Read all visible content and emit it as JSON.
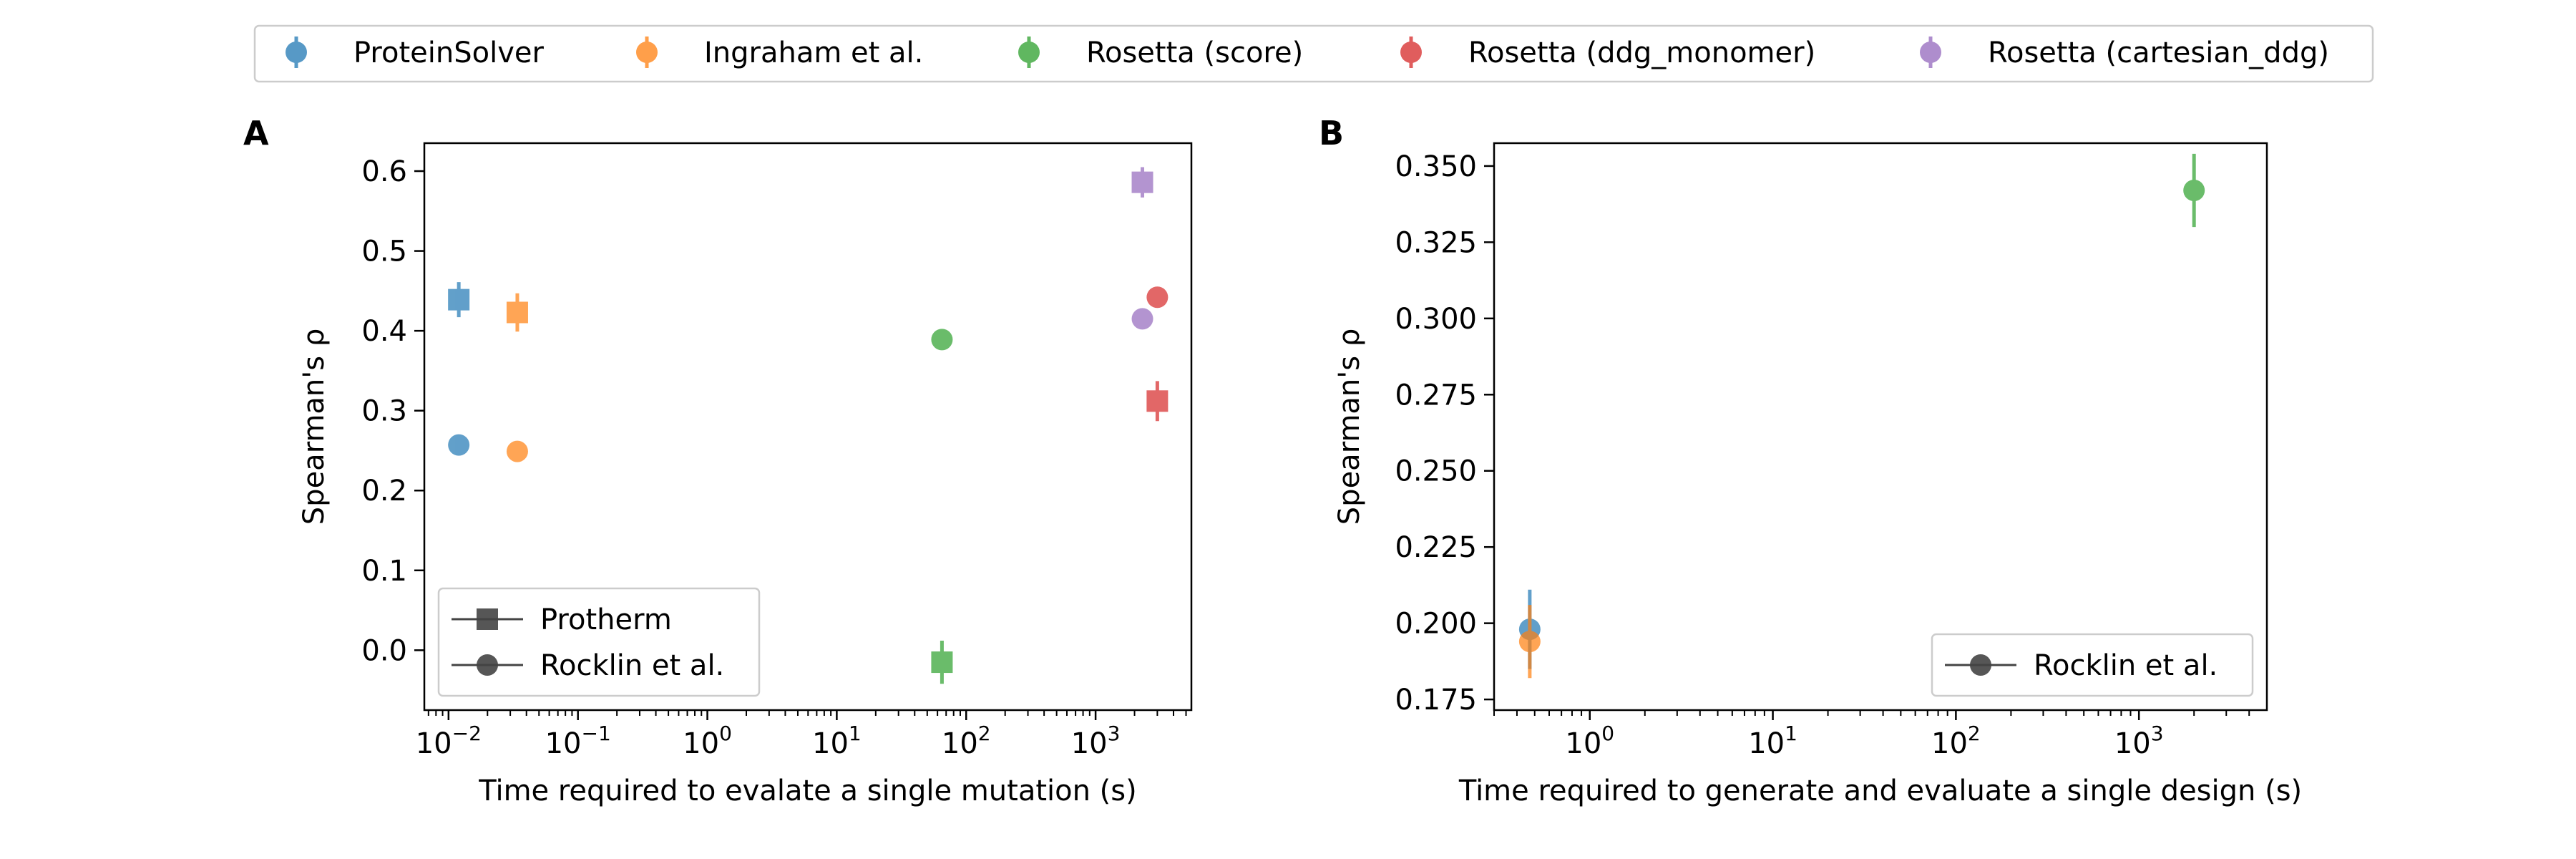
{
  "figure": {
    "legend": [
      {
        "name": "ProteinSolver",
        "color": "#1f77b4"
      },
      {
        "name": "Ingraham et al.",
        "color": "#ff7f0e"
      },
      {
        "name": "Rosetta (score)",
        "color": "#2ca02c"
      },
      {
        "name": "Rosetta (ddg_monomer)",
        "color": "#d62728"
      },
      {
        "name": "Rosetta (cartesian_ddg)",
        "color": "#9467bd"
      }
    ]
  },
  "chart_data": [
    {
      "panel": "A",
      "type": "scatter",
      "xlabel": "Time required to evalate a single mutation (s)",
      "ylabel": "Spearman's ρ",
      "xscale": "log",
      "xlim": [
        0.0065,
        5500
      ],
      "ylim": [
        -0.075,
        0.635
      ],
      "xticks": [
        0.01,
        0.1,
        1,
        10,
        100,
        1000
      ],
      "xtick_labels": [
        [
          "10",
          "−2"
        ],
        [
          "10",
          "−1"
        ],
        [
          "10",
          "0"
        ],
        [
          "10",
          "1"
        ],
        [
          "10",
          "2"
        ],
        [
          "10",
          "3"
        ]
      ],
      "yticks": [
        0.0,
        0.1,
        0.2,
        0.3,
        0.4,
        0.5,
        0.6
      ],
      "ytick_labels": [
        "0.0",
        "0.1",
        "0.2",
        "0.3",
        "0.4",
        "0.5",
        "0.6"
      ],
      "marker_legend": {
        "placement": "lower-left",
        "entries": [
          {
            "label": "Protherm",
            "marker": "square"
          },
          {
            "label": "Rocklin et al.",
            "marker": "circle"
          }
        ]
      },
      "points": [
        {
          "series": "ProteinSolver",
          "dataset": "Protherm",
          "x": 0.012,
          "y": 0.439,
          "err": 0.022
        },
        {
          "series": "ProteinSolver",
          "dataset": "Rocklin et al.",
          "x": 0.012,
          "y": 0.257,
          "err": 0.01
        },
        {
          "series": "Ingraham et al.",
          "dataset": "Protherm",
          "x": 0.034,
          "y": 0.423,
          "err": 0.024
        },
        {
          "series": "Ingraham et al.",
          "dataset": "Rocklin et al.",
          "x": 0.034,
          "y": 0.249,
          "err": 0.01
        },
        {
          "series": "Rosetta (score)",
          "dataset": "Protherm",
          "x": 65,
          "y": -0.015,
          "err": 0.027
        },
        {
          "series": "Rosetta (score)",
          "dataset": "Rocklin et al.",
          "x": 65,
          "y": 0.389,
          "err": 0.008
        },
        {
          "series": "Rosetta (ddg_monomer)",
          "dataset": "Protherm",
          "x": 3000,
          "y": 0.312,
          "err": 0.025
        },
        {
          "series": "Rosetta (ddg_monomer)",
          "dataset": "Rocklin et al.",
          "x": 3000,
          "y": 0.442,
          "err": 0.008
        },
        {
          "series": "Rosetta (cartesian_ddg)",
          "dataset": "Protherm",
          "x": 2300,
          "y": 0.586,
          "err": 0.019
        },
        {
          "series": "Rosetta (cartesian_ddg)",
          "dataset": "Rocklin et al.",
          "x": 2300,
          "y": 0.415,
          "err": 0.01
        }
      ]
    },
    {
      "panel": "B",
      "type": "scatter",
      "xlabel": "Time required to generate and evaluate a single design (s)",
      "ylabel": "Spearman's ρ",
      "xscale": "log",
      "xlim": [
        0.3,
        5000
      ],
      "ylim": [
        0.1715,
        0.3575
      ],
      "xticks": [
        1,
        10,
        100,
        1000
      ],
      "xtick_labels": [
        [
          "10",
          "0"
        ],
        [
          "10",
          "1"
        ],
        [
          "10",
          "2"
        ],
        [
          "10",
          "3"
        ]
      ],
      "yticks": [
        0.175,
        0.2,
        0.225,
        0.25,
        0.275,
        0.3,
        0.325,
        0.35
      ],
      "ytick_labels": [
        "0.175",
        "0.200",
        "0.225",
        "0.250",
        "0.275",
        "0.300",
        "0.325",
        "0.350"
      ],
      "marker_legend": {
        "placement": "lower-right",
        "entries": [
          {
            "label": "Rocklin et al.",
            "marker": "circle"
          }
        ]
      },
      "points": [
        {
          "series": "ProteinSolver",
          "dataset": "Rocklin et al.",
          "x": 0.47,
          "y": 0.198,
          "err": 0.013
        },
        {
          "series": "Ingraham et al.",
          "dataset": "Rocklin et al.",
          "x": 0.47,
          "y": 0.194,
          "err": 0.012
        },
        {
          "series": "Rosetta (score)",
          "dataset": "Rocklin et al.",
          "x": 2000,
          "y": 0.342,
          "err": 0.012
        }
      ]
    }
  ]
}
